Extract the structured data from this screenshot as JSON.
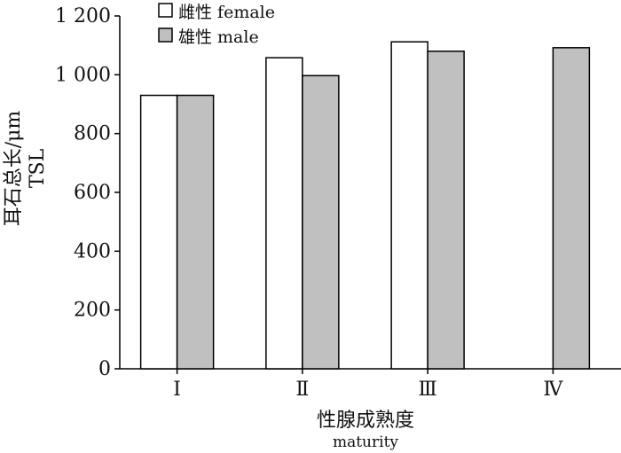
{
  "chart_data": {
    "type": "bar",
    "categories": [
      "Ⅰ",
      "Ⅱ",
      "Ⅲ",
      "Ⅳ"
    ],
    "series": [
      {
        "name": "雌性 female",
        "values": [
          930,
          1058,
          1112,
          null
        ],
        "color": "#ffffff"
      },
      {
        "name": "雄性 male",
        "values": [
          930,
          997,
          1080,
          1092
        ],
        "color": "#c0c0c0"
      }
    ],
    "ylim": [
      0,
      1200
    ],
    "yticks": [
      0,
      200,
      400,
      600,
      800,
      1000,
      1200
    ],
    "ytick_labels": [
      "0",
      "200",
      "400",
      "600",
      "800",
      "1 000",
      "1 200"
    ],
    "ylabel": "耳石总长/μm",
    "ylabel2": "TSL",
    "xlabel": "性腺成熟度",
    "xlabel2": "maturity",
    "grid": false,
    "legend_position": "top-left"
  }
}
